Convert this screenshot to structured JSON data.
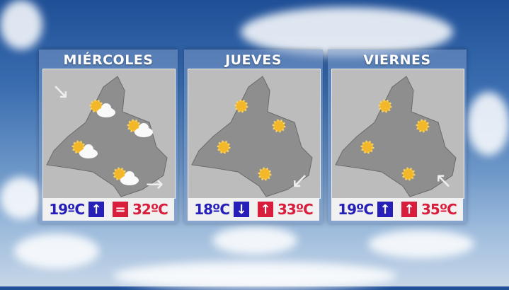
{
  "days": [
    {
      "name": "MIÉRCOLES",
      "min": "19ºC",
      "min_trend": "↑",
      "max_trend": "=",
      "max": "32ºC",
      "wind": "↘",
      "wind2": "→",
      "icons": [
        "sun-cloud",
        "sun-cloud",
        "sun-cloud",
        "sun-cloud"
      ]
    },
    {
      "name": "JUEVES",
      "min": "18ºC",
      "min_trend": "↓",
      "max_trend": "↑",
      "max": "33ºC",
      "wind": "↙",
      "icons": [
        "sun",
        "sun",
        "sun",
        "sun"
      ]
    },
    {
      "name": "VIERNES",
      "min": "19ºC",
      "min_trend": "↑",
      "max_trend": "↑",
      "max": "35ºC",
      "wind": "↖",
      "icons": [
        "sun",
        "sun",
        "sun",
        "sun"
      ]
    }
  ],
  "colors": {
    "min": "#2620b8",
    "max": "#d81e3c",
    "map": "#bcbcbc"
  }
}
